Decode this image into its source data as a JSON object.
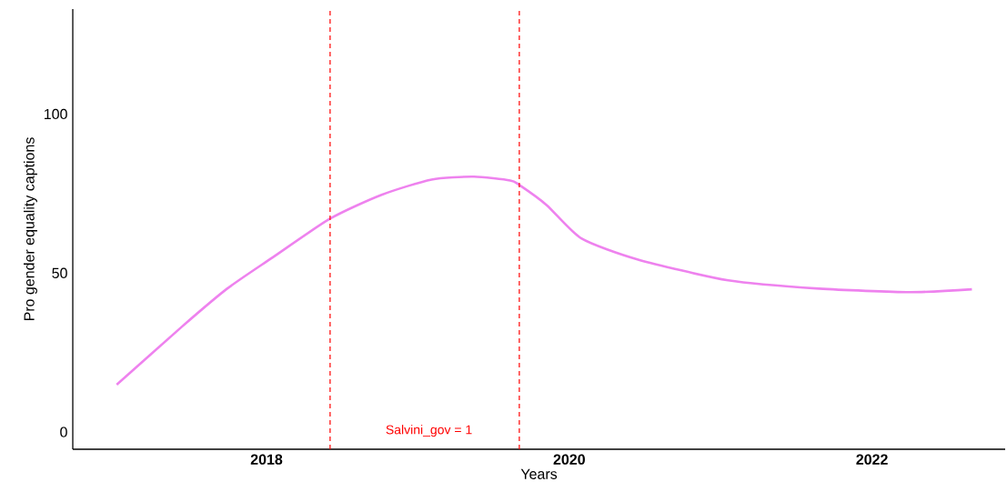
{
  "chart_data": {
    "type": "line",
    "xlabel": "Years",
    "ylabel": "Pro gender equality captions",
    "series": [
      {
        "color": "#ee82ee",
        "x": [
          2017.01,
          2017.44,
          2017.74,
          2018.04,
          2018.42,
          2018.76,
          2019.09,
          2019.37,
          2019.61,
          2019.67,
          2019.85,
          2020.08,
          2020.45,
          2021.05,
          2021.65,
          2022.25,
          2022.66
        ],
        "values": [
          14.9,
          33.1,
          45.1,
          54.9,
          67.1,
          74.6,
          79.4,
          80.3,
          79.1,
          77.7,
          71.4,
          60.9,
          54.3,
          47.7,
          45.1,
          44.0,
          44.9
        ]
      }
    ],
    "xlim": [
      2016.72,
      2022.88
    ],
    "ylim": [
      -5.4,
      133
    ],
    "xticks": [
      2018,
      2020,
      2022
    ],
    "yticks": [
      0,
      50,
      100
    ],
    "ref_lines": [
      {
        "axis": "x",
        "value": 2018.42,
        "color": "#ff0000",
        "line_style": "dashed"
      },
      {
        "axis": "x",
        "value": 2019.67,
        "color": "#ff0000",
        "line_style": "dashed"
      }
    ],
    "annotations": [
      "Salvini_gov = 1"
    ]
  }
}
